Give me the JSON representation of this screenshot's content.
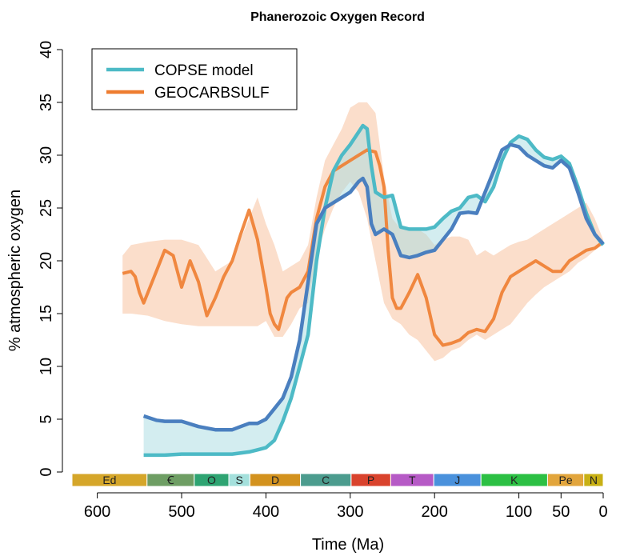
{
  "chart_data": {
    "type": "line",
    "title": "Phanerozoic Oxygen Record",
    "xlabel": "Time (Ma)",
    "ylabel": "% atmospheric oxygen",
    "xlim": [
      630,
      0
    ],
    "ylim": [
      0,
      40
    ],
    "x_ticks": [
      600,
      500,
      400,
      300,
      200,
      100,
      50,
      0
    ],
    "y_ticks": [
      0,
      5,
      10,
      15,
      20,
      25,
      30,
      35,
      40
    ],
    "legend": {
      "position": "top-left",
      "entries": [
        {
          "label": "COPSE model",
          "color": "#4dbac6"
        },
        {
          "label": "GEOCARBSULF",
          "color": "#ee7d30"
        }
      ]
    },
    "series": [
      {
        "name": "COPSE model",
        "role": "upper",
        "color": "#4dbac6",
        "x": [
          545,
          520,
          500,
          480,
          460,
          440,
          420,
          410,
          400,
          390,
          380,
          370,
          360,
          350,
          340,
          330,
          320,
          310,
          300,
          290,
          285,
          280,
          275,
          270,
          260,
          250,
          240,
          230,
          220,
          210,
          200,
          190,
          180,
          170,
          160,
          150,
          140,
          130,
          120,
          110,
          100,
          90,
          80,
          70,
          60,
          50,
          40,
          30,
          20,
          10,
          0
        ],
        "y": [
          1.6,
          1.6,
          1.7,
          1.7,
          1.7,
          1.7,
          1.9,
          2.1,
          2.3,
          3.0,
          4.8,
          7.0,
          10.0,
          13.0,
          20.0,
          25.0,
          28.5,
          30.0,
          31.0,
          32.2,
          32.8,
          32.5,
          29.0,
          26.5,
          26.0,
          26.2,
          23.2,
          23.0,
          23.0,
          23.0,
          23.2,
          24.0,
          24.7,
          25.0,
          26.0,
          26.2,
          25.6,
          27.0,
          29.5,
          31.2,
          31.8,
          31.5,
          30.5,
          29.8,
          29.6,
          29.9,
          29.2,
          27.0,
          24.5,
          22.5,
          21.5
        ]
      },
      {
        "name": "COPSE model",
        "role": "lower",
        "color": "#4a7fbf",
        "x": [
          545,
          530,
          520,
          500,
          480,
          460,
          440,
          430,
          420,
          410,
          400,
          390,
          380,
          370,
          360,
          350,
          340,
          330,
          320,
          310,
          300,
          290,
          285,
          280,
          275,
          270,
          260,
          250,
          240,
          230,
          220,
          210,
          200,
          190,
          180,
          170,
          160,
          150,
          140,
          130,
          120,
          110,
          100,
          90,
          80,
          70,
          60,
          50,
          40,
          30,
          20,
          10,
          0
        ],
        "y": [
          5.3,
          4.9,
          4.8,
          4.8,
          4.3,
          4.0,
          4.0,
          4.3,
          4.6,
          4.6,
          5.0,
          6.0,
          7.0,
          9.0,
          12.5,
          18.0,
          23.5,
          25.0,
          25.5,
          26.0,
          26.5,
          27.5,
          27.8,
          27.0,
          23.5,
          22.5,
          23.0,
          22.5,
          20.5,
          20.3,
          20.5,
          20.8,
          21.0,
          22.0,
          23.0,
          24.5,
          24.6,
          24.5,
          26.5,
          28.5,
          30.5,
          31.0,
          30.8,
          30.0,
          29.5,
          29.0,
          28.8,
          29.5,
          28.8,
          26.5,
          24.0,
          22.5,
          21.6
        ]
      },
      {
        "name": "GEOCARBSULF",
        "role": "central",
        "color": "#ee7d30",
        "x": [
          570,
          560,
          555,
          550,
          545,
          540,
          530,
          520,
          510,
          500,
          490,
          480,
          470,
          460,
          450,
          440,
          430,
          420,
          410,
          400,
          395,
          390,
          385,
          380,
          375,
          370,
          360,
          350,
          340,
          330,
          320,
          310,
          300,
          290,
          280,
          270,
          265,
          260,
          255,
          250,
          245,
          240,
          230,
          220,
          210,
          200,
          190,
          180,
          170,
          160,
          150,
          140,
          130,
          120,
          110,
          100,
          90,
          80,
          70,
          60,
          50,
          40,
          30,
          20,
          10,
          0
        ],
        "y": [
          18.8,
          19.0,
          18.5,
          17.0,
          16.0,
          17.0,
          19.0,
          21.0,
          20.5,
          17.5,
          20.0,
          18.0,
          14.8,
          16.5,
          18.5,
          20.0,
          22.5,
          24.8,
          22.0,
          17.5,
          15.0,
          14.0,
          13.5,
          15.0,
          16.5,
          17.0,
          17.5,
          19.0,
          24.0,
          27.0,
          28.5,
          29.0,
          29.5,
          30.0,
          30.5,
          30.3,
          29.0,
          27.0,
          21.0,
          16.5,
          15.5,
          15.5,
          17.0,
          18.7,
          16.5,
          13.0,
          12.0,
          12.2,
          12.5,
          13.2,
          13.5,
          13.3,
          14.5,
          17.0,
          18.5,
          19.0,
          19.5,
          20.0,
          19.5,
          19.0,
          19.0,
          20.0,
          20.5,
          21.0,
          21.2,
          21.8
        ]
      }
    ],
    "geocarbsulf_band": {
      "x": [
        570,
        560,
        540,
        520,
        500,
        480,
        460,
        440,
        420,
        410,
        400,
        390,
        380,
        370,
        360,
        350,
        340,
        330,
        320,
        310,
        300,
        290,
        280,
        270,
        260,
        250,
        240,
        230,
        220,
        210,
        200,
        190,
        180,
        170,
        160,
        150,
        140,
        130,
        120,
        110,
        100,
        90,
        80,
        70,
        60,
        50,
        40,
        30,
        20,
        10,
        0
      ],
      "upper": [
        20.5,
        21.5,
        21.8,
        22.0,
        22.0,
        21.5,
        19.0,
        20.0,
        24.0,
        26.0,
        23.5,
        21.5,
        19.0,
        19.5,
        20.0,
        21.5,
        26.0,
        29.5,
        31.0,
        32.5,
        34.5,
        35.0,
        35.0,
        34.0,
        28.0,
        24.0,
        23.0,
        23.0,
        23.0,
        22.5,
        21.5,
        22.0,
        22.3,
        22.3,
        22.0,
        20.5,
        21.0,
        20.5,
        21.0,
        21.5,
        21.8,
        22.0,
        22.5,
        23.0,
        23.5,
        24.0,
        24.5,
        25.0,
        25.5,
        24.0,
        22.0
      ],
      "lower": [
        15.0,
        15.0,
        14.8,
        14.3,
        14.0,
        13.8,
        13.8,
        13.8,
        13.8,
        13.8,
        14.3,
        12.8,
        12.8,
        14.0,
        15.5,
        16.0,
        20.5,
        23.0,
        25.0,
        26.5,
        27.5,
        26.5,
        24.0,
        20.0,
        16.0,
        14.5,
        14.0,
        13.0,
        12.5,
        11.5,
        10.5,
        10.8,
        11.5,
        11.8,
        12.5,
        13.0,
        12.5,
        13.0,
        13.5,
        14.0,
        15.0,
        16.0,
        16.8,
        17.5,
        18.0,
        18.5,
        19.0,
        19.8,
        20.3,
        21.0,
        21.5
      ]
    },
    "periods": [
      {
        "label": "Ed",
        "start": 630,
        "end": 541,
        "color": "#d5a62a"
      },
      {
        "label": "Ꞓ",
        "start": 541,
        "end": 485,
        "color": "#6e9e64"
      },
      {
        "label": "O",
        "start": 485,
        "end": 444,
        "color": "#2ea472"
      },
      {
        "label": "S",
        "start": 444,
        "end": 419,
        "color": "#a4e0dc"
      },
      {
        "label": "D",
        "start": 419,
        "end": 359,
        "color": "#d3921e"
      },
      {
        "label": "C",
        "start": 359,
        "end": 299,
        "color": "#4c9c8e"
      },
      {
        "label": "P",
        "start": 299,
        "end": 252,
        "color": "#d9432d"
      },
      {
        "label": "T",
        "start": 252,
        "end": 201,
        "color": "#b65ac6"
      },
      {
        "label": "J",
        "start": 201,
        "end": 145,
        "color": "#4a91dc"
      },
      {
        "label": "K",
        "start": 145,
        "end": 66,
        "color": "#2cc044"
      },
      {
        "label": "Pe",
        "start": 66,
        "end": 23,
        "color": "#e2a53c"
      },
      {
        "label": "N",
        "start": 23,
        "end": 0,
        "color": "#c8b014"
      }
    ]
  }
}
